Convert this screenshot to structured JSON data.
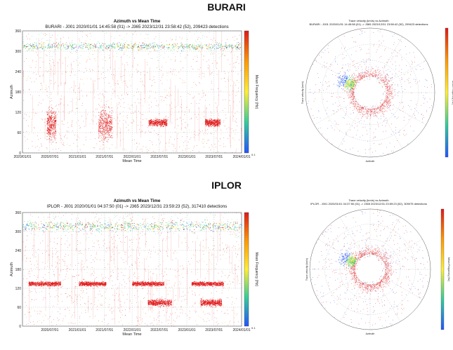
{
  "stations": [
    {
      "name": "BURARI",
      "scatter_title": "Azimuth vs Mean Time",
      "scatter_subtitle": "BURARI - J001 2020/01/01 14:45:58 (01) -> J365 2023/12/31 23:58:42 (52), 209423 detections",
      "polar_title": "Trace velocity (km/s) vs Azimuth",
      "polar_subtitle": "BURARI - J001 2020/01/01 14:45:58 (01) -> J365 2023/12/31 23:58:42 (52), 209423 detections"
    },
    {
      "name": "IPLOR",
      "scatter_title": "Azimuth vs Mean Time",
      "scatter_subtitle": "IPLOR - J001 2020/01/01 04:37:50 (01) -> J365 2023/12/31 23:59:23 (52), 317410 detections",
      "polar_title": "Trace velocity (km/s) vs Azimuth",
      "polar_subtitle": "IPLOR - J001 2020/01/01 04:37:50 (01) -> J365 2023/12/31 23:59:23 (52), 309075 detections"
    }
  ],
  "chart_data": [
    {
      "type": "scatter",
      "station": "BURARI",
      "title": "Azimuth vs Mean Time",
      "xlabel": "Mean Time",
      "ylabel": "Azimuth",
      "colorbar_label": "Mean Frequency (Hz)",
      "colorbar_min_label": "0.1",
      "x_ticks": [
        "2020/01/01",
        "2020/07/01",
        "2021/01/01",
        "2021/07/01",
        "2022/01/01",
        "2022/07/01",
        "2023/01/01",
        "2023/07/01",
        "2024/01/01"
      ],
      "y_ticks": [
        0,
        60,
        120,
        180,
        240,
        300,
        360
      ],
      "ylim": [
        0,
        360
      ],
      "grid": true,
      "clusters": [
        {
          "x": [
            "2020/01/01",
            "2024/01/01"
          ],
          "y": [
            300,
            330
          ],
          "color": "#33cc99"
        },
        {
          "x": [
            "2020/06/10",
            "2020/08/10"
          ],
          "y": [
            20,
            150
          ],
          "color": "#e01818"
        },
        {
          "x": [
            "2021/05/20",
            "2021/08/20"
          ],
          "y": [
            20,
            150
          ],
          "color": "#e01818"
        },
        {
          "x": [
            "2022/04/20",
            "2022/08/20"
          ],
          "y": [
            75,
            105
          ],
          "color": "#e01818"
        },
        {
          "x": [
            "2023/05/01",
            "2023/08/10"
          ],
          "y": [
            75,
            105
          ],
          "color": "#e01818"
        }
      ]
    },
    {
      "type": "scatter",
      "station": "BURARI",
      "title": "Trace velocity (km/s) vs Azimuth",
      "xlabel": "Azimuth",
      "ylabel": "Trace velocity (km/s)",
      "colorbar_label": "Mean Frequency (Hz)",
      "projection": "polar",
      "grid": true
    },
    {
      "type": "scatter",
      "station": "IPLOR",
      "title": "Azimuth vs Mean Time",
      "xlabel": "Mean Time",
      "ylabel": "Azimuth",
      "colorbar_label": "Mean Frequency (Hz)",
      "colorbar_min_label": "0.1",
      "x_ticks": [
        "2020/07/01",
        "2021/01/01",
        "2021/07/01",
        "2022/01/01",
        "2022/07/01",
        "2023/01/01",
        "2023/07/01",
        "2024/01/01"
      ],
      "y_ticks": [
        0,
        60,
        120,
        180,
        240,
        300,
        360
      ],
      "ylim": [
        0,
        360
      ],
      "grid": true,
      "clusters": [
        {
          "x": [
            "2020/01/01",
            "2024/01/01"
          ],
          "y": [
            295,
            340
          ],
          "color": "#33cc99"
        },
        {
          "x": [
            "2020/02/10",
            "2020/09/10"
          ],
          "y": [
            125,
            145
          ],
          "color": "#e01818"
        },
        {
          "x": [
            "2021/01/10",
            "2021/07/10"
          ],
          "y": [
            125,
            145
          ],
          "color": "#e01818"
        },
        {
          "x": [
            "2022/01/01",
            "2022/08/01"
          ],
          "y": [
            125,
            145
          ],
          "color": "#e01818"
        },
        {
          "x": [
            "2023/02/01",
            "2023/09/01"
          ],
          "y": [
            125,
            145
          ],
          "color": "#e01818"
        },
        {
          "x": [
            "2022/04/15",
            "2022/09/20"
          ],
          "y": [
            60,
            90
          ],
          "color": "#e01818"
        },
        {
          "x": [
            "2023/04/01",
            "2023/08/20"
          ],
          "y": [
            60,
            90
          ],
          "color": "#e01818"
        }
      ]
    },
    {
      "type": "scatter",
      "station": "IPLOR",
      "title": "Trace velocity (km/s) vs Azimuth",
      "xlabel": "Azimuth",
      "ylabel": "Trace velocity (km/s)",
      "colorbar_label": "Mean Frequency (Hz)",
      "projection": "polar",
      "grid": true
    }
  ],
  "colors": {
    "hot": "#e01818",
    "warm": "#ff9900",
    "mid": "#ffee33",
    "cool": "#33cc99",
    "cold": "#2255ff",
    "grid": "#bbbbbb"
  }
}
